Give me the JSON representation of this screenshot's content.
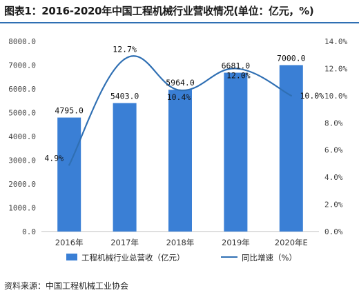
{
  "title": "图表1：2016-2020年中国工程机械行业营收情况(单位：亿元，%)",
  "source": "资料来源：中国工程机械工业协会",
  "colors": {
    "bar": "#3a7fd5",
    "line": "#2f6fb3",
    "rule": "#2f6fb3"
  },
  "chart_data": {
    "type": "bar+line",
    "categories": [
      "2016年",
      "2017年",
      "2018年",
      "2019年",
      "2020年E"
    ],
    "series": [
      {
        "name": "工程机械行业总营收（亿元）",
        "type": "bar",
        "axis": "left",
        "values": [
          4795.0,
          5403.0,
          5964.0,
          6681.0,
          7000.0
        ],
        "labels": [
          "4795.0",
          "5403.0",
          "5964.0",
          "6681.0",
          "7000.0"
        ]
      },
      {
        "name": "同比增速（%）",
        "type": "line",
        "axis": "right",
        "values": [
          4.9,
          12.7,
          10.4,
          12.0,
          10.0
        ],
        "labels": [
          "4.9%",
          "12.7%",
          "10.4%",
          "12.0%",
          "10.0%"
        ]
      }
    ],
    "y_left": {
      "range": [
        0,
        8000
      ],
      "ticks": [
        "0.0",
        "1000.0",
        "2000.0",
        "3000.0",
        "4000.0",
        "5000.0",
        "6000.0",
        "7000.0",
        "8000.0"
      ]
    },
    "y_right": {
      "range": [
        0,
        14
      ],
      "ticks": [
        "0.0%",
        "2.0%",
        "4.0%",
        "6.0%",
        "8.0%",
        "10.0%",
        "12.0%",
        "14.0%"
      ]
    },
    "grid": false,
    "legend_position": "bottom"
  }
}
